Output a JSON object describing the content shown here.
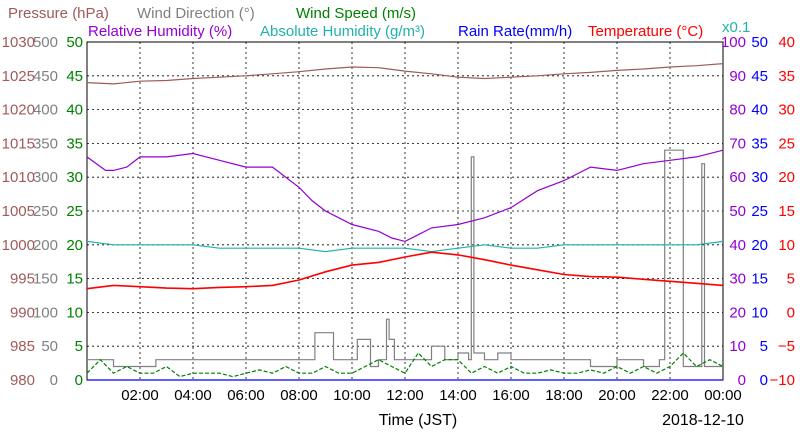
{
  "chart_data": {
    "type": "line",
    "date": "2018-12-10",
    "xlabel": "Time (JST)",
    "xlim": [
      0,
      24
    ],
    "x_ticks": [
      "02:00",
      "04:00",
      "06:00",
      "08:00",
      "10:00",
      "12:00",
      "14:00",
      "16:00",
      "18:00",
      "20:00",
      "22:00",
      "00:00"
    ],
    "legend": {
      "pressure": "Pressure (hPa)",
      "wind_direction": "Wind Direction (°)",
      "wind_speed": "Wind Speed (m/s)",
      "relative_humidity": "Relative Humidity (%)",
      "absolute_humidity": "Absolute Humidity (g/m³)",
      "abs_humidity_scale": "x0.1",
      "rain_rate": "Rain Rate(mm/h)",
      "temperature": "Temperature (°C)"
    },
    "axes": {
      "pressure": {
        "min": 980,
        "max": 1030,
        "ticks": [
          "1030",
          "1025",
          "1020",
          "1015",
          "1010",
          "1005",
          "1000",
          "995",
          "990",
          "985",
          "980"
        ]
      },
      "wind_direction": {
        "min": 0,
        "max": 500,
        "ticks": [
          "500",
          "450",
          "400",
          "350",
          "300",
          "250",
          "200",
          "150",
          "100",
          "50",
          "0"
        ]
      },
      "wind_speed": {
        "min": 0,
        "max": 50,
        "ticks": [
          "50",
          "45",
          "40",
          "35",
          "30",
          "25",
          "20",
          "15",
          "10",
          "5",
          "0"
        ]
      },
      "relative_humidity": {
        "min": 0,
        "max": 100,
        "ticks": [
          "100",
          "90",
          "80",
          "70",
          "60",
          "50",
          "40",
          "30",
          "20",
          "10",
          "0"
        ]
      },
      "rain_rate": {
        "min": 0,
        "max": 50,
        "ticks": [
          "50",
          "45",
          "40",
          "35",
          "30",
          "25",
          "20",
          "15",
          "10",
          "5",
          "0"
        ]
      },
      "temperature": {
        "min": -10,
        "max": 40,
        "ticks": [
          "40",
          "35",
          "30",
          "25",
          "20",
          "15",
          "10",
          "5",
          "0",
          "−5",
          "−10"
        ]
      }
    },
    "colors": {
      "pressure": "#a05a5a",
      "wind_direction": "#808080",
      "wind_speed": "#008000",
      "relative_humidity": "#9400d3",
      "absolute_humidity": "#20b2aa",
      "rain_rate": "#0000ff",
      "temperature": "#ff0000"
    },
    "series": [
      {
        "name": "Pressure (hPa)",
        "key": "pressure",
        "x": [
          0,
          1,
          2,
          3,
          4,
          5,
          6,
          7,
          8,
          9,
          10,
          11,
          12,
          13,
          14,
          15,
          16,
          17,
          18,
          19,
          20,
          21,
          22,
          23,
          24
        ],
        "values": [
          1024.0,
          1023.8,
          1024.2,
          1024.3,
          1024.6,
          1024.8,
          1025.0,
          1025.3,
          1025.6,
          1026.0,
          1026.3,
          1026.2,
          1025.7,
          1025.3,
          1024.8,
          1024.6,
          1024.8,
          1025.0,
          1025.3,
          1025.5,
          1025.8,
          1026.0,
          1026.3,
          1026.5,
          1026.8
        ]
      },
      {
        "name": "Relative Humidity (%)",
        "key": "relative_humidity",
        "x": [
          0,
          0.7,
          1,
          1.5,
          2,
          3,
          4,
          5,
          6,
          7,
          8,
          8.5,
          9,
          9.5,
          10,
          11,
          11.5,
          12,
          12.5,
          13,
          14,
          15,
          16,
          17,
          18,
          19,
          20,
          21,
          22,
          23,
          24
        ],
        "values": [
          66,
          62,
          62,
          63,
          66,
          66,
          67,
          65,
          63,
          63,
          57,
          53,
          50,
          48,
          46,
          44,
          42,
          41,
          43,
          45,
          46,
          48,
          51,
          56,
          59,
          63,
          62,
          64,
          65,
          66,
          68
        ]
      },
      {
        "name": "Absolute Humidity (g/m³) x0.1",
        "key": "absolute_humidity",
        "x": [
          0,
          1,
          2,
          3,
          4,
          5,
          6,
          7,
          8,
          9,
          10,
          11,
          12,
          13,
          14,
          15,
          16,
          17,
          18,
          19,
          20,
          21,
          22,
          23,
          24
        ],
        "values": [
          41,
          40,
          40,
          40,
          40,
          39,
          39,
          39,
          39,
          38,
          39,
          39,
          39,
          38,
          39,
          40,
          39,
          39,
          40,
          40,
          40,
          40,
          40,
          40,
          41
        ]
      },
      {
        "name": "Temperature (°C)",
        "key": "temperature",
        "x": [
          0,
          1,
          2,
          3,
          4,
          5,
          6,
          7,
          8,
          9,
          10,
          11,
          12,
          13,
          14,
          15,
          16,
          17,
          18,
          19,
          20,
          21,
          22,
          23,
          24
        ],
        "values": [
          3.5,
          4.0,
          3.8,
          3.6,
          3.5,
          3.7,
          3.8,
          4.0,
          4.8,
          6.0,
          7.0,
          7.4,
          8.2,
          8.9,
          8.5,
          7.8,
          7.0,
          6.3,
          5.6,
          5.3,
          5.2,
          4.9,
          4.6,
          4.3,
          4.0
        ]
      },
      {
        "name": "Wind Direction (°)",
        "key": "wind_direction",
        "x": [
          0,
          0.7,
          1,
          2.5,
          2.6,
          5,
          5.5,
          6,
          7,
          7.1,
          8,
          8.1,
          8.5,
          8.6,
          9.2,
          9.3,
          10,
          10.2,
          10.5,
          10.7,
          11,
          11.3,
          11.4,
          11.6,
          12,
          12.5,
          13,
          13.5,
          14,
          14.4,
          14.5,
          14.6,
          15,
          15.5,
          16,
          17,
          18,
          19,
          20,
          21,
          21.5,
          21.6,
          21.8,
          22,
          22.5,
          23,
          23.2,
          23.3,
          23.6,
          23.7,
          24
        ],
        "values": [
          30,
          30,
          20,
          20,
          30,
          30,
          30,
          30,
          30,
          30,
          30,
          30,
          30,
          70,
          70,
          30,
          30,
          60,
          60,
          20,
          30,
          90,
          60,
          30,
          30,
          30,
          50,
          30,
          40,
          30,
          330,
          40,
          30,
          40,
          30,
          30,
          30,
          20,
          30,
          20,
          20,
          30,
          340,
          340,
          20,
          20,
          320,
          20,
          20,
          20,
          20
        ]
      },
      {
        "name": "Wind Speed (m/s)",
        "key": "wind_speed",
        "x": [
          0,
          0.5,
          1,
          1.5,
          2,
          2.5,
          3,
          3.5,
          4,
          4.5,
          5,
          5.5,
          6,
          6.5,
          7,
          7.5,
          8,
          8.5,
          9,
          9.5,
          10,
          10.5,
          11,
          11.5,
          12,
          12.5,
          13,
          13.5,
          14,
          14.5,
          15,
          15.5,
          16,
          16.5,
          17,
          17.5,
          18,
          18.5,
          19,
          19.5,
          20,
          20.5,
          21,
          21.5,
          22,
          22.5,
          23,
          23.5,
          24
        ],
        "values": [
          1,
          3,
          1,
          2,
          1,
          1,
          2,
          0.5,
          1,
          1,
          1,
          0.5,
          1,
          1.5,
          1,
          2,
          1,
          1,
          2,
          1,
          1,
          2,
          3,
          2,
          1,
          4,
          2,
          3,
          3,
          1,
          2,
          1,
          2,
          1,
          1,
          1.5,
          1,
          1,
          1.5,
          1,
          2,
          1,
          2,
          1,
          2,
          4,
          2,
          3,
          2
        ]
      },
      {
        "name": "Rain Rate(mm/h)",
        "key": "rain_rate",
        "x": [
          0,
          24
        ],
        "values": [
          0,
          0
        ]
      }
    ]
  }
}
